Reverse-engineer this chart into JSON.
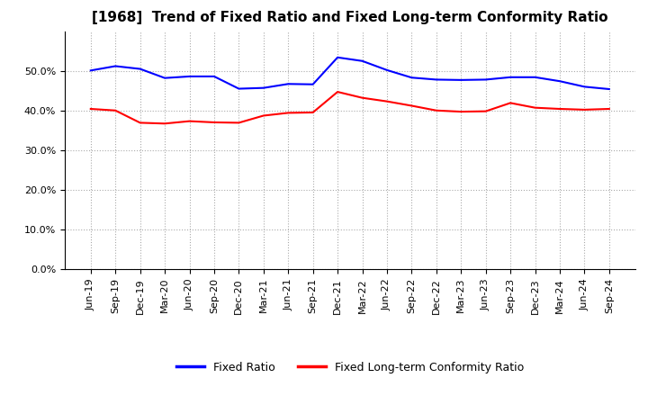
{
  "title": "[1968]  Trend of Fixed Ratio and Fixed Long-term Conformity Ratio",
  "x_labels": [
    "Jun-19",
    "Sep-19",
    "Dec-19",
    "Mar-20",
    "Jun-20",
    "Sep-20",
    "Dec-20",
    "Mar-21",
    "Jun-21",
    "Sep-21",
    "Dec-21",
    "Mar-22",
    "Jun-22",
    "Sep-22",
    "Dec-22",
    "Mar-23",
    "Jun-23",
    "Sep-23",
    "Dec-23",
    "Mar-24",
    "Jun-24",
    "Sep-24"
  ],
  "fixed_ratio": [
    50.2,
    51.3,
    50.6,
    48.3,
    48.7,
    48.7,
    45.6,
    45.8,
    46.8,
    46.7,
    53.5,
    52.6,
    50.3,
    48.4,
    47.9,
    47.8,
    47.9,
    48.5,
    48.5,
    47.5,
    46.1,
    45.5
  ],
  "fixed_lt_ratio": [
    40.5,
    40.1,
    37.0,
    36.8,
    37.4,
    37.1,
    37.0,
    38.8,
    39.5,
    39.6,
    44.8,
    43.3,
    42.4,
    41.3,
    40.1,
    39.8,
    39.9,
    42.0,
    40.8,
    40.5,
    40.3,
    40.5
  ],
  "fixed_ratio_color": "#0000ff",
  "fixed_lt_ratio_color": "#ff0000",
  "ylim_min": 0,
  "ylim_max": 60,
  "yticks": [
    0,
    10,
    20,
    30,
    40,
    50
  ],
  "background_color": "#ffffff",
  "grid_color": "#aaaaaa",
  "title_fontsize": 11,
  "tick_fontsize": 8,
  "legend_fixed_ratio": "Fixed Ratio",
  "legend_fixed_lt_ratio": "Fixed Long-term Conformity Ratio",
  "line_width": 1.5
}
